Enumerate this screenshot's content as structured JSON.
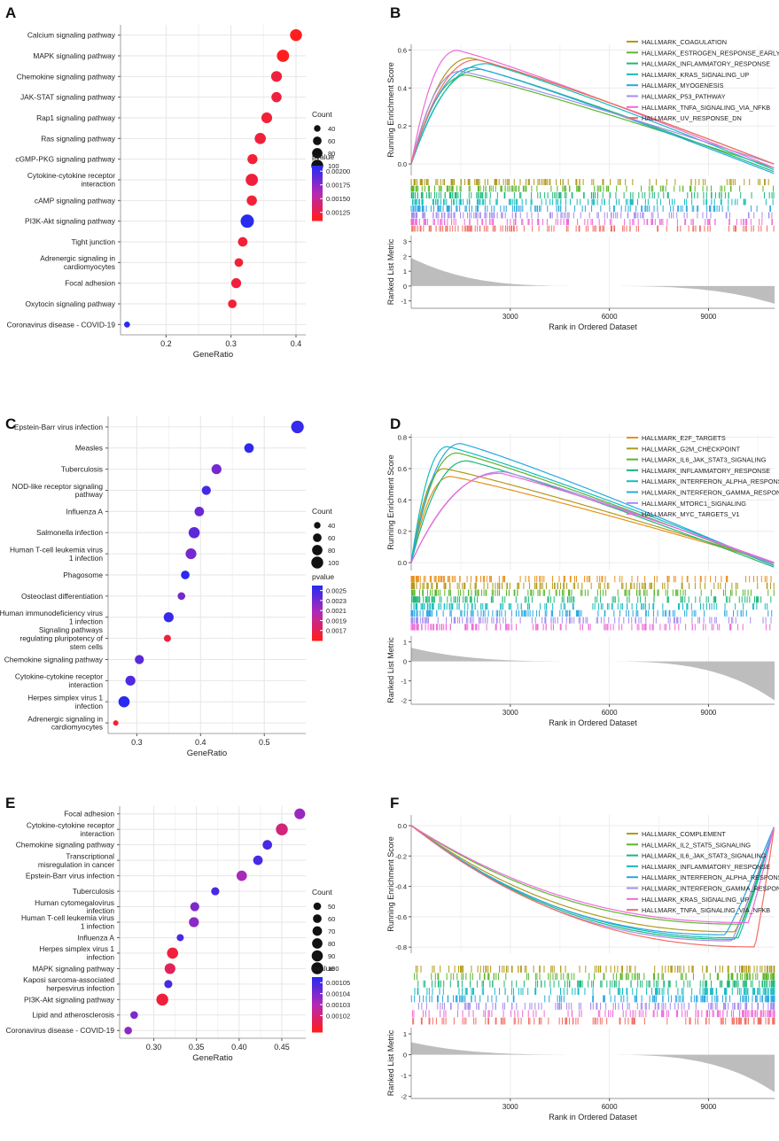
{
  "figure": {
    "panel_letters": [
      "A",
      "B",
      "C",
      "D",
      "E",
      "F"
    ]
  },
  "chart_data": [
    {
      "panel": "A",
      "type": "scatter",
      "subtype": "dotplot",
      "xlabel": "GeneRatio",
      "xlim": [
        0.13,
        0.415
      ],
      "xticks": [
        0.2,
        0.3,
        0.4
      ],
      "xtick_labels": [
        "0.2",
        "0.3",
        "0.4"
      ],
      "categories": [
        "Calcium signaling pathway",
        "MAPK signaling pathway",
        "Chemokine signaling pathway",
        "JAK-STAT signaling pathway",
        "Rap1 signaling pathway",
        "Ras signaling pathway",
        "cGMP-PKG signaling pathway",
        "Cytokine-cytokine receptor\ninteraction",
        "cAMP signaling pathway",
        "PI3K-Akt signaling pathway",
        "Tight junction",
        "Adrenergic signaling in\ncardiomyocytes",
        "Focal adhesion",
        "Oxytocin signaling pathway",
        "Coronavirus disease - COVID-19"
      ],
      "x": [
        0.4,
        0.38,
        0.37,
        0.37,
        0.355,
        0.345,
        0.333,
        0.332,
        0.332,
        0.325,
        0.318,
        0.312,
        0.308,
        0.302,
        0.14
      ],
      "count": [
        100,
        105,
        85,
        78,
        85,
        90,
        76,
        105,
        78,
        120,
        70,
        60,
        75,
        60,
        35
      ],
      "pvalue": [
        0.0011,
        0.0011,
        0.0012,
        0.0012,
        0.00118,
        0.0012,
        0.00118,
        0.0012,
        0.00118,
        0.0021,
        0.00118,
        0.00118,
        0.0012,
        0.00118,
        0.0021
      ],
      "size_legend": {
        "title": "Count",
        "values": [
          40,
          60,
          80,
          100
        ],
        "labels": [
          "40",
          "60",
          "80",
          "100"
        ]
      },
      "color_legend": {
        "title": "pvalue",
        "range": [
          0.0011,
          0.0021
        ],
        "ticks": [
          0.002,
          0.00175,
          0.0015,
          0.00125
        ],
        "labels": [
          "0.00200",
          "0.00175",
          "0.00150",
          "0.00125"
        ]
      }
    },
    {
      "panel": "B",
      "type": "line",
      "subtype": "gsea",
      "xlabel": "Rank in Ordered Dataset",
      "ylabel_top": "Running Enrichment Score",
      "ylabel_bottom": "Ranked List Metric",
      "xlim": [
        0,
        11000
      ],
      "xticks": [
        3000,
        6000,
        9000
      ],
      "xtick_labels": [
        "3000",
        "6000",
        "9000"
      ],
      "ylim": [
        -0.06,
        0.63
      ],
      "yticks": [
        0,
        0.2,
        0.4,
        0.6
      ],
      "ytick_labels": [
        "0.0",
        "0.2",
        "0.4",
        "0.6"
      ],
      "metric_ylim": [
        -1.5,
        3.4
      ],
      "metric_ticks": [
        3,
        2,
        1,
        0,
        -1
      ],
      "metric_tick_labels": [
        "3",
        "2",
        "1",
        "0",
        "-1"
      ],
      "metric_max": 1.9,
      "metric_min": -1.2,
      "series": [
        {
          "name": "HALLMARK_COAGULATION",
          "color": "#b09a1b",
          "peak_rank": 1800,
          "peak": 0.56,
          "end": 0.0
        },
        {
          "name": "HALLMARK_ESTROGEN_RESPONSE_EARLY",
          "color": "#5ab72d",
          "peak_rank": 1700,
          "peak": 0.47,
          "end": -0.02
        },
        {
          "name": "HALLMARK_INFLAMMATORY_RESPONSE",
          "color": "#1cb87a",
          "peak_rank": 2100,
          "peak": 0.5,
          "end": -0.04
        },
        {
          "name": "HALLMARK_KRAS_SIGNALING_UP",
          "color": "#16bcc0",
          "peak_rank": 2300,
          "peak": 0.53,
          "end": -0.03
        },
        {
          "name": "HALLMARK_MYOGENESIS",
          "color": "#2aa7e0",
          "peak_rank": 1900,
          "peak": 0.51,
          "end": -0.05
        },
        {
          "name": "HALLMARK_P53_PATHWAY",
          "color": "#a58ced",
          "peak_rank": 1500,
          "peak": 0.49,
          "end": 0.0
        },
        {
          "name": "HALLMARK_TNFA_SIGNALING_VIA_NFKB",
          "color": "#ee6ad7",
          "peak_rank": 1400,
          "peak": 0.6,
          "end": -0.02
        },
        {
          "name": "HALLMARK_UV_RESPONSE_DN",
          "color": "#f26e63",
          "peak_rank": 2000,
          "peak": 0.55,
          "end": 0.0
        }
      ]
    },
    {
      "panel": "C",
      "type": "scatter",
      "subtype": "dotplot",
      "xlabel": "GeneRatio",
      "xlim": [
        0.255,
        0.565
      ],
      "xticks": [
        0.3,
        0.4,
        0.5
      ],
      "xtick_labels": [
        "0.3",
        "0.4",
        "0.5"
      ],
      "categories": [
        "Epstein-Barr virus infection",
        "Measles",
        "Tuberculosis",
        "NOD-like receptor signaling\npathway",
        "Influenza A",
        "Salmonella infection",
        "Human T-cell leukemia virus\n1 infection",
        "Phagosome",
        "Osteoclast differentiation",
        "Human immunodeficiency virus\n1 infection",
        "Signaling pathways\nregulating pluripotency of\nstem cells",
        "Chemokine signaling pathway",
        "Cytokine-cytokine receptor\ninteraction",
        "Herpes simplex virus 1\ninfection",
        "Adrenergic signaling in\ncardiomyocytes"
      ],
      "x": [
        0.552,
        0.476,
        0.425,
        0.409,
        0.398,
        0.39,
        0.385,
        0.376,
        0.37,
        0.35,
        0.348,
        0.304,
        0.29,
        0.28,
        0.267
      ],
      "count": [
        110,
        70,
        75,
        65,
        70,
        90,
        85,
        60,
        50,
        75,
        45,
        65,
        75,
        90,
        30
      ],
      "pvalue": [
        0.00255,
        0.00258,
        0.0023,
        0.0025,
        0.00235,
        0.0024,
        0.0023,
        0.0026,
        0.0023,
        0.00255,
        0.0016,
        0.0024,
        0.00245,
        0.00262,
        0.00155
      ],
      "size_legend": {
        "title": "Count",
        "values": [
          40,
          60,
          80,
          100
        ],
        "labels": [
          "40",
          "60",
          "80",
          "100"
        ]
      },
      "color_legend": {
        "title": "pvalue",
        "range": [
          0.0015,
          0.0026
        ],
        "ticks": [
          0.0025,
          0.0023,
          0.0021,
          0.0019,
          0.0017
        ],
        "labels": [
          "0.0025",
          "0.0023",
          "0.0021",
          "0.0019",
          "0.0017"
        ]
      }
    },
    {
      "panel": "D",
      "type": "line",
      "subtype": "gsea",
      "xlabel": "Rank in Ordered Dataset",
      "ylabel_top": "Running Enrichment Score",
      "ylabel_bottom": "Ranked List Metric",
      "xlim": [
        0,
        11000
      ],
      "xticks": [
        3000,
        6000,
        9000
      ],
      "xtick_labels": [
        "3000",
        "6000",
        "9000"
      ],
      "ylim": [
        -0.05,
        0.82
      ],
      "yticks": [
        0,
        0.2,
        0.4,
        0.6,
        0.8
      ],
      "ytick_labels": [
        "0.0",
        "0.2",
        "0.4",
        "0.6",
        "0.8"
      ],
      "metric_ylim": [
        -2.2,
        1.3
      ],
      "metric_ticks": [
        1,
        0,
        -1,
        -2
      ],
      "metric_tick_labels": [
        "1",
        "0",
        "-1",
        "-2"
      ],
      "metric_max": 0.7,
      "metric_min": -2.0,
      "series": [
        {
          "name": "HALLMARK_E2F_TARGETS",
          "color": "#e8901c",
          "peak_rank": 1200,
          "peak": 0.55,
          "end": 0.0
        },
        {
          "name": "HALLMARK_G2M_CHECKPOINT",
          "color": "#b09a1b",
          "peak_rank": 1000,
          "peak": 0.6,
          "end": 0.0
        },
        {
          "name": "HALLMARK_IL6_JAK_STAT3_SIGNALING",
          "color": "#5ab72d",
          "peak_rank": 1400,
          "peak": 0.7,
          "end": -0.02
        },
        {
          "name": "HALLMARK_INFLAMMATORY_RESPONSE",
          "color": "#1cb87a",
          "peak_rank": 1700,
          "peak": 0.65,
          "end": -0.03
        },
        {
          "name": "HALLMARK_INTERFERON_ALPHA_RESPONSE",
          "color": "#16bcc0",
          "peak_rank": 1100,
          "peak": 0.74,
          "end": -0.01
        },
        {
          "name": "HALLMARK_INTERFERON_GAMMA_RESPONSE",
          "color": "#2aa7e0",
          "peak_rank": 1500,
          "peak": 0.76,
          "end": -0.02
        },
        {
          "name": "HALLMARK_MTORC1_SIGNALING",
          "color": "#a58ced",
          "peak_rank": 2800,
          "peak": 0.58,
          "end": -0.01
        },
        {
          "name": "HALLMARK_MYC_TARGETS_V1",
          "color": "#ee6ad7",
          "peak_rank": 2700,
          "peak": 0.57,
          "end": 0.0
        }
      ]
    },
    {
      "panel": "E",
      "type": "scatter",
      "subtype": "dotplot",
      "xlabel": "GeneRatio",
      "xlim": [
        0.26,
        0.478
      ],
      "xticks": [
        0.3,
        0.35,
        0.4,
        0.45
      ],
      "xtick_labels": [
        "0.30",
        "0.35",
        "0.40",
        "0.45"
      ],
      "categories": [
        "Focal adhesion",
        "Cytokine-cytokine receptor\ninteraction",
        "Chemokine signaling pathway",
        "Transcriptional\nmisregulation in cancer",
        "Epstein-Barr virus infection",
        "Tuberculosis",
        "Human cytomegalovirus\ninfection",
        "Human T-cell leukemia virus\n1 infection",
        "Influenza A",
        "Herpes simplex virus 1\ninfection",
        "MAPK signaling pathway",
        "Kaposi sarcoma-associated\nherpesvirus infection",
        "PI3K-Akt signaling pathway",
        "Lipid and atherosclerosis",
        "Coronavirus disease - COVID-19"
      ],
      "x": [
        0.471,
        0.45,
        0.433,
        0.422,
        0.403,
        0.372,
        0.348,
        0.347,
        0.331,
        0.322,
        0.319,
        0.317,
        0.31,
        0.277,
        0.27
      ],
      "count": [
        85,
        100,
        70,
        70,
        80,
        55,
        65,
        75,
        45,
        90,
        85,
        55,
        100,
        50,
        50
      ],
      "pvalue": [
        0.001035,
        0.00102,
        0.00105,
        0.00105,
        0.001032,
        0.00105,
        0.00104,
        0.001037,
        0.00105,
        0.00101,
        0.001015,
        0.00105,
        0.00101,
        0.00104,
        0.001037
      ],
      "size_legend": {
        "title": "Count",
        "values": [
          50,
          60,
          70,
          80,
          90,
          100
        ],
        "labels": [
          "50",
          "60",
          "70",
          "80",
          "90",
          "100"
        ]
      },
      "color_legend": {
        "title": "pvalue",
        "range": [
          0.001005,
          0.001055
        ],
        "ticks": [
          0.00105,
          0.00104,
          0.00103,
          0.00102
        ],
        "labels": [
          "0.00105",
          "0.00104",
          "0.00103",
          "0.00102"
        ]
      }
    },
    {
      "panel": "F",
      "type": "line",
      "subtype": "gsea",
      "xlabel": "Rank in Ordered Dataset",
      "ylabel_top": "Running Enrichment Score",
      "ylabel_bottom": "Ranked List Metric",
      "xlim": [
        0,
        11000
      ],
      "xticks": [
        3000,
        6000,
        9000
      ],
      "xtick_labels": [
        "3000",
        "6000",
        "9000"
      ],
      "ylim": [
        -0.84,
        0.07
      ],
      "yticks": [
        0,
        -0.2,
        -0.4,
        -0.6,
        -0.8
      ],
      "ytick_labels": [
        "0.0",
        "-0.2",
        "-0.4",
        "-0.6",
        "-0.8"
      ],
      "metric_ylim": [
        -2.1,
        1.3
      ],
      "metric_ticks": [
        1,
        0,
        -1,
        -2
      ],
      "metric_tick_labels": [
        "1",
        "0",
        "-1",
        "-2"
      ],
      "metric_max": 0.6,
      "metric_min": -1.8,
      "series": [
        {
          "name": "HALLMARK_COMPLEMENT",
          "color": "#b09a1b",
          "peak_rank": 9800,
          "peak": -0.7,
          "end": 0.0
        },
        {
          "name": "HALLMARK_IL2_STAT5_SIGNALING",
          "color": "#5ab72d",
          "peak_rank": 10000,
          "peak": -0.65,
          "end": 0.0
        },
        {
          "name": "HALLMARK_IL6_JAK_STAT3_SIGNALING",
          "color": "#1cb87a",
          "peak_rank": 9800,
          "peak": -0.75,
          "end": 0.0
        },
        {
          "name": "HALLMARK_INFLAMMATORY_RESPONSE",
          "color": "#16bcc0",
          "peak_rank": 9900,
          "peak": -0.74,
          "end": 0.0
        },
        {
          "name": "HALLMARK_INTERFERON_ALPHA_RESPONSE",
          "color": "#2aa7e0",
          "peak_rank": 9500,
          "peak": -0.72,
          "end": 0.0
        },
        {
          "name": "HALLMARK_INTERFERON_GAMMA_RESPONSE",
          "color": "#a58ced",
          "peak_rank": 9700,
          "peak": -0.76,
          "end": 0.0
        },
        {
          "name": "HALLMARK_KRAS_SIGNALING_UP",
          "color": "#ee6ad7",
          "peak_rank": 10200,
          "peak": -0.64,
          "end": 0.0
        },
        {
          "name": "HALLMARK_TNFA_SIGNALING_VIA_NFKB",
          "color": "#f26e63",
          "peak_rank": 10400,
          "peak": -0.8,
          "end": 0.0
        }
      ]
    }
  ]
}
